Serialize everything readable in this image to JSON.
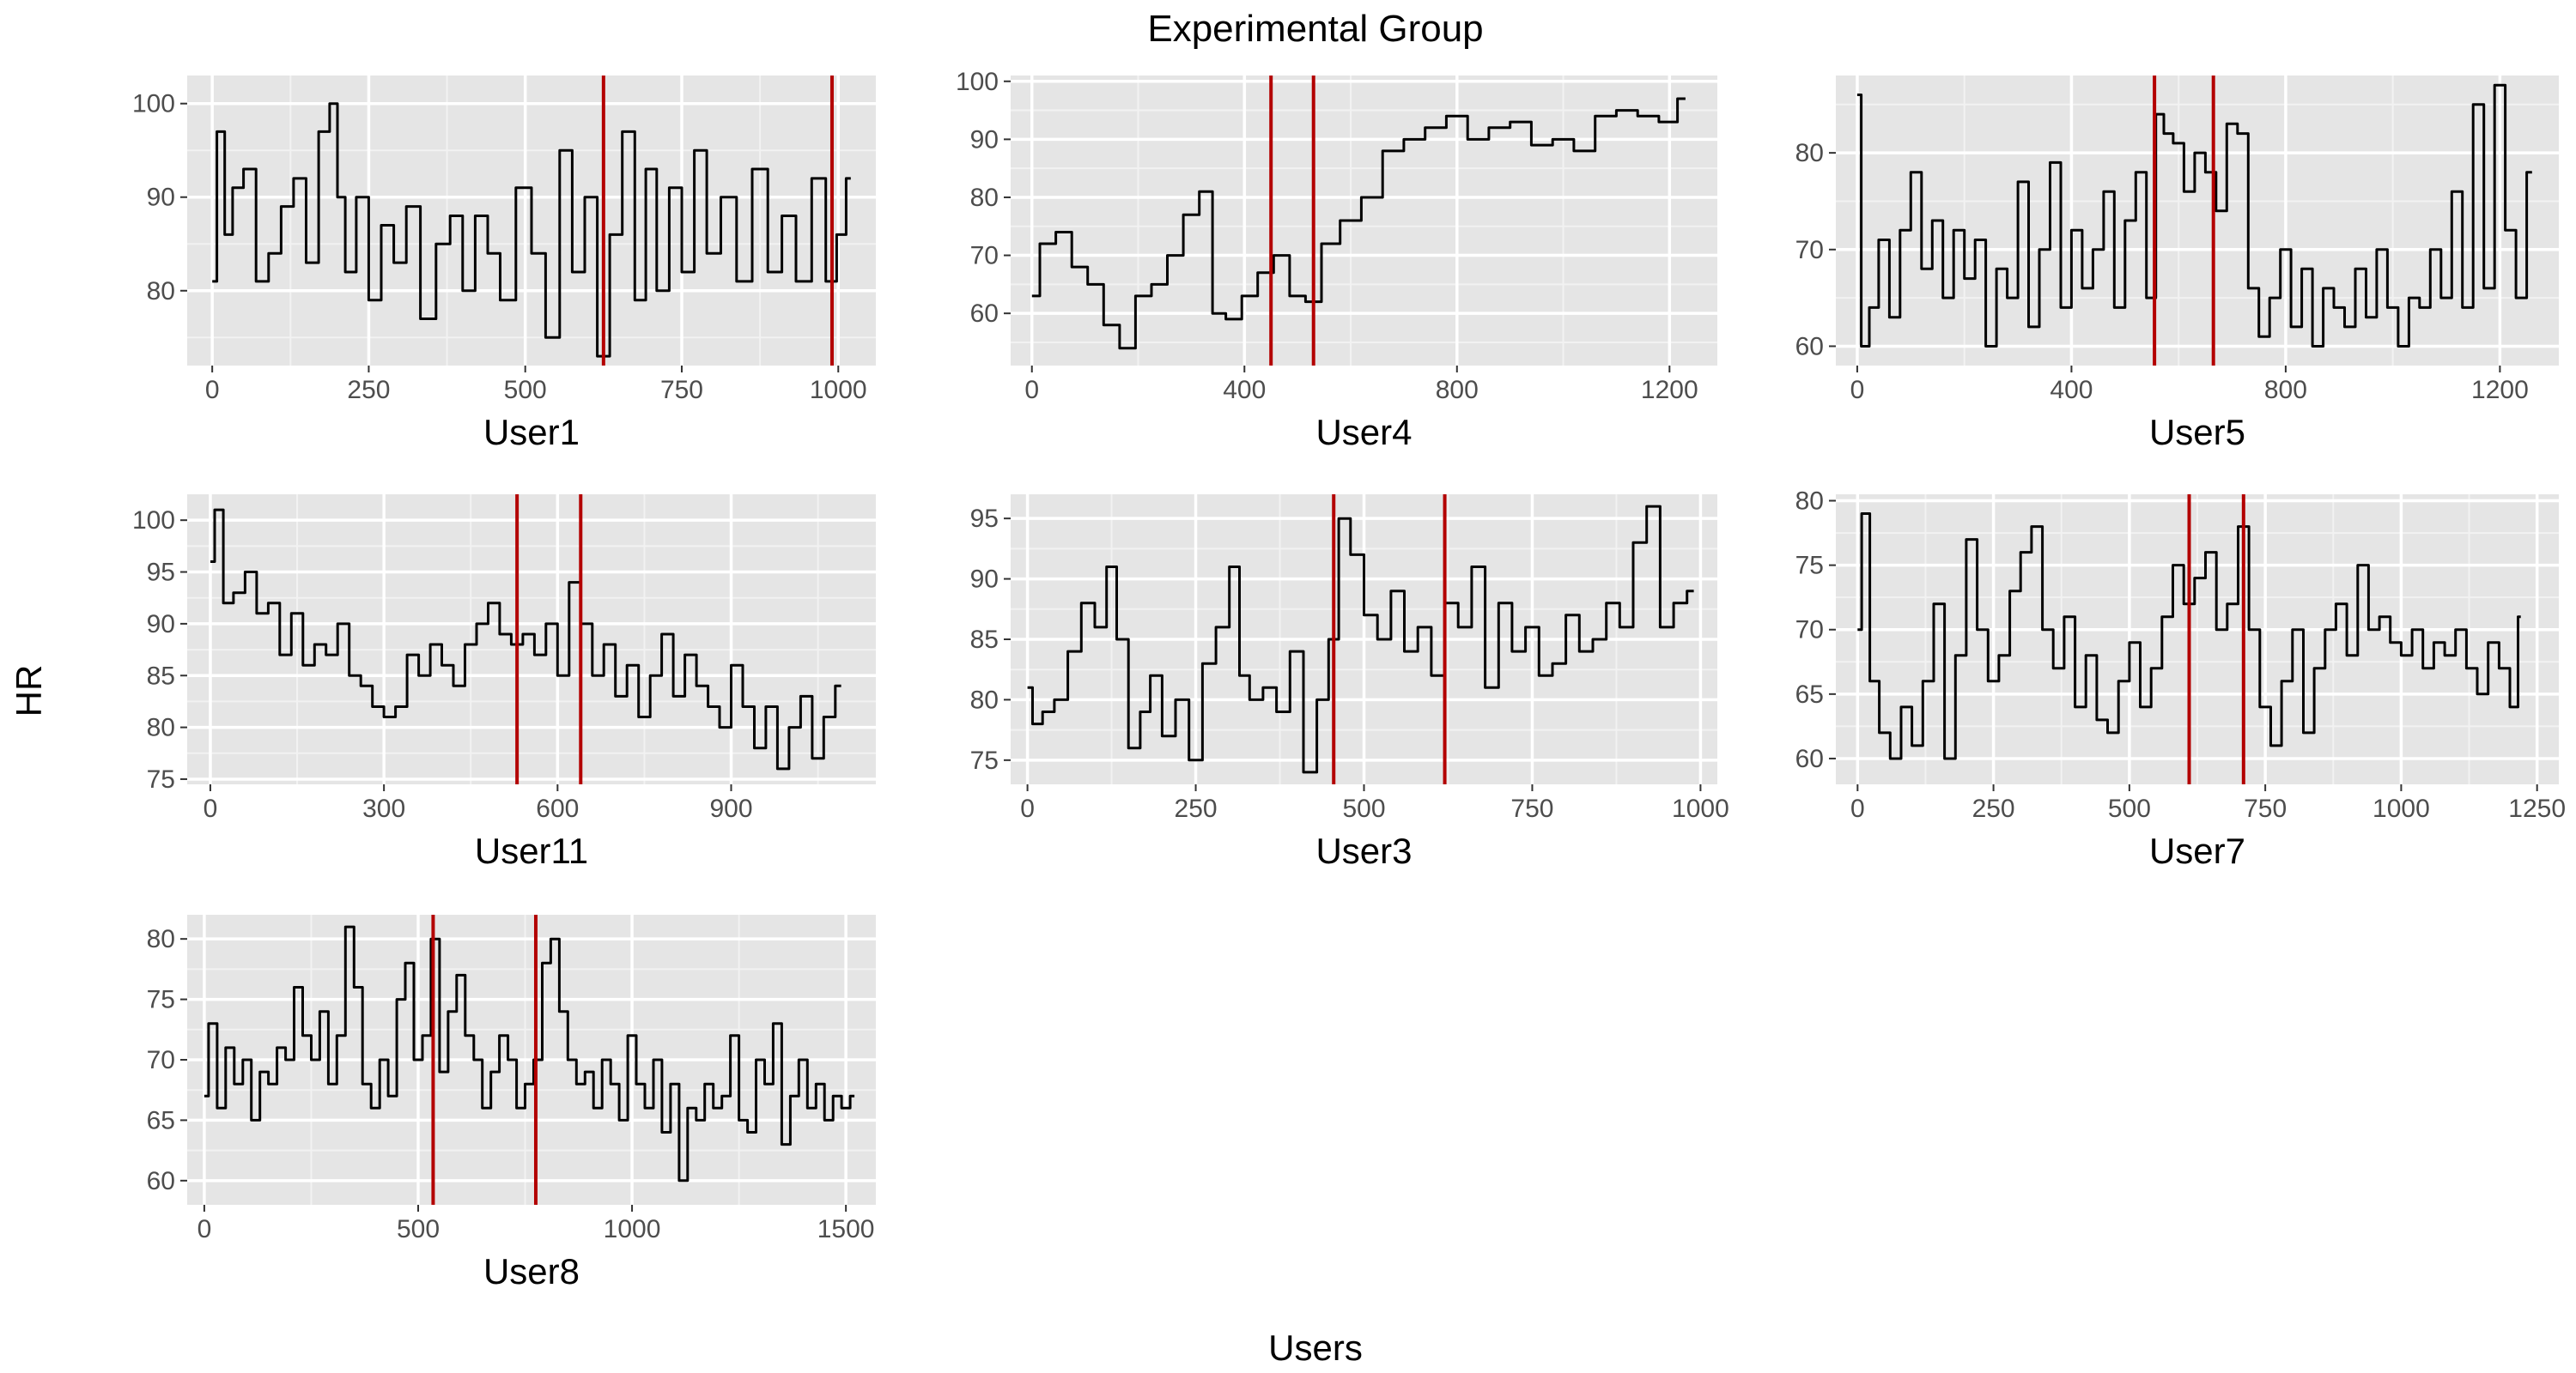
{
  "figure": {
    "title": "Experimental Group",
    "ylabel": "HR",
    "xlabel": "Users"
  },
  "colors": {
    "panel_bg": "#e5e5e5",
    "grid_major": "#ffffff",
    "grid_minor": "#f2f2f2",
    "series": "#000000",
    "marker": "#b30000",
    "tick_text": "#4d4d4d"
  },
  "chart_data": [
    {
      "type": "line",
      "xlabel": "User1",
      "xlim": [
        -40,
        1060
      ],
      "ylim": [
        72,
        103
      ],
      "xticks": [
        0,
        250,
        500,
        750,
        1000
      ],
      "yticks": [
        80,
        90,
        100
      ],
      "markers": [
        625,
        990
      ],
      "x": [
        0,
        15,
        25,
        40,
        60,
        80,
        100,
        120,
        140,
        160,
        180,
        195,
        205,
        220,
        240,
        260,
        280,
        300,
        320,
        345,
        370,
        390,
        410,
        430,
        450,
        470,
        500,
        520,
        545,
        565,
        585,
        605,
        625,
        645,
        665,
        685,
        700,
        720,
        740,
        760,
        780,
        800,
        825,
        850,
        875,
        900,
        920,
        945,
        970,
        990,
        1005,
        1020
      ],
      "y": [
        81,
        97,
        86,
        91,
        93,
        81,
        84,
        89,
        92,
        83,
        97,
        100,
        90,
        82,
        90,
        79,
        87,
        83,
        89,
        77,
        85,
        88,
        80,
        88,
        84,
        79,
        91,
        84,
        75,
        95,
        82,
        90,
        73,
        86,
        97,
        79,
        93,
        80,
        91,
        82,
        95,
        84,
        90,
        81,
        93,
        82,
        88,
        81,
        92,
        81,
        86,
        92
      ]
    },
    {
      "type": "line",
      "xlabel": "User4",
      "xlim": [
        -40,
        1290
      ],
      "ylim": [
        51,
        101
      ],
      "xticks": [
        0,
        400,
        800,
        1200
      ],
      "yticks": [
        60,
        70,
        80,
        90,
        100
      ],
      "markers": [
        450,
        530
      ],
      "x": [
        0,
        30,
        60,
        90,
        120,
        150,
        180,
        210,
        240,
        270,
        300,
        330,
        350,
        380,
        410,
        440,
        470,
        500,
        530,
        560,
        600,
        640,
        680,
        720,
        760,
        800,
        840,
        880,
        920,
        960,
        1000,
        1040,
        1080,
        1120,
        1160,
        1200,
        1230
      ],
      "y": [
        63,
        72,
        74,
        68,
        65,
        58,
        54,
        63,
        65,
        70,
        77,
        81,
        60,
        59,
        63,
        67,
        70,
        63,
        62,
        72,
        76,
        80,
        88,
        90,
        92,
        94,
        90,
        92,
        93,
        89,
        90,
        88,
        94,
        95,
        94,
        93,
        97
      ]
    },
    {
      "type": "line",
      "xlabel": "User5",
      "xlim": [
        -40,
        1310
      ],
      "ylim": [
        58,
        88
      ],
      "xticks": [
        0,
        400,
        800,
        1200
      ],
      "yticks": [
        60,
        70,
        80
      ],
      "markers": [
        555,
        665
      ],
      "x": [
        0,
        15,
        30,
        50,
        70,
        90,
        110,
        130,
        150,
        170,
        190,
        210,
        230,
        250,
        270,
        290,
        310,
        330,
        350,
        370,
        390,
        410,
        430,
        450,
        470,
        490,
        510,
        530,
        550,
        565,
        580,
        600,
        620,
        640,
        660,
        680,
        700,
        720,
        740,
        760,
        780,
        800,
        820,
        840,
        860,
        880,
        900,
        920,
        940,
        960,
        980,
        1000,
        1020,
        1040,
        1060,
        1080,
        1100,
        1120,
        1140,
        1160,
        1180,
        1200,
        1220,
        1240,
        1260
      ],
      "y": [
        86,
        60,
        64,
        71,
        63,
        72,
        78,
        68,
        73,
        65,
        72,
        67,
        71,
        60,
        68,
        65,
        77,
        62,
        70,
        79,
        64,
        72,
        66,
        70,
        76,
        64,
        73,
        78,
        65,
        84,
        82,
        81,
        76,
        80,
        78,
        74,
        83,
        82,
        66,
        61,
        65,
        70,
        62,
        68,
        60,
        66,
        64,
        62,
        68,
        63,
        70,
        64,
        60,
        65,
        64,
        70,
        65,
        76,
        64,
        85,
        66,
        87,
        72,
        65,
        78
      ]
    },
    {
      "type": "line",
      "xlabel": "User11",
      "xlim": [
        -40,
        1150
      ],
      "ylim": [
        74.5,
        102.5
      ],
      "xticks": [
        0,
        300,
        600,
        900
      ],
      "yticks": [
        75,
        80,
        85,
        90,
        95,
        100
      ],
      "markers": [
        530,
        640
      ],
      "x": [
        0,
        15,
        30,
        50,
        70,
        90,
        110,
        130,
        150,
        170,
        190,
        210,
        230,
        250,
        270,
        290,
        310,
        330,
        350,
        370,
        390,
        410,
        430,
        450,
        470,
        490,
        510,
        530,
        550,
        570,
        590,
        610,
        630,
        650,
        670,
        690,
        710,
        730,
        750,
        770,
        790,
        810,
        830,
        850,
        870,
        890,
        910,
        930,
        950,
        970,
        990,
        1010,
        1030,
        1050,
        1070,
        1090
      ],
      "y": [
        96,
        101,
        92,
        93,
        95,
        91,
        92,
        87,
        91,
        86,
        88,
        87,
        90,
        85,
        84,
        82,
        81,
        82,
        87,
        85,
        88,
        86,
        84,
        88,
        90,
        92,
        89,
        88,
        89,
        87,
        90,
        85,
        94,
        90,
        85,
        88,
        83,
        86,
        81,
        85,
        89,
        83,
        87,
        84,
        82,
        80,
        86,
        82,
        78,
        82,
        76,
        80,
        83,
        77,
        81,
        84
      ]
    },
    {
      "type": "line",
      "xlabel": "User3",
      "xlim": [
        -25,
        1025
      ],
      "ylim": [
        73,
        97
      ],
      "xticks": [
        0,
        250,
        500,
        750,
        1000
      ],
      "yticks": [
        75,
        80,
        85,
        90,
        95
      ],
      "markers": [
        455,
        620
      ],
      "x": [
        0,
        15,
        30,
        50,
        70,
        90,
        110,
        125,
        140,
        160,
        175,
        190,
        210,
        230,
        250,
        270,
        290,
        310,
        320,
        340,
        360,
        380,
        400,
        420,
        440,
        455,
        470,
        490,
        510,
        530,
        550,
        570,
        590,
        610,
        630,
        650,
        670,
        690,
        710,
        730,
        750,
        770,
        790,
        810,
        830,
        850,
        870,
        890,
        910,
        930,
        950,
        970,
        990
      ],
      "y": [
        81,
        78,
        79,
        80,
        84,
        88,
        86,
        91,
        85,
        76,
        79,
        82,
        77,
        80,
        75,
        83,
        86,
        91,
        82,
        80,
        81,
        79,
        84,
        74,
        80,
        85,
        95,
        92,
        87,
        85,
        89,
        84,
        86,
        82,
        88,
        86,
        91,
        81,
        88,
        84,
        86,
        82,
        83,
        87,
        84,
        85,
        88,
        86,
        93,
        96,
        86,
        88,
        89
      ]
    },
    {
      "type": "line",
      "xlabel": "User7",
      "xlim": [
        -40,
        1290
      ],
      "ylim": [
        58,
        80.5
      ],
      "xticks": [
        0,
        250,
        500,
        750,
        1000,
        1250
      ],
      "yticks": [
        60,
        65,
        70,
        75,
        80
      ],
      "markers": [
        610,
        710
      ],
      "x": [
        0,
        15,
        30,
        50,
        70,
        90,
        110,
        130,
        150,
        170,
        190,
        210,
        230,
        250,
        270,
        290,
        310,
        330,
        350,
        370,
        390,
        410,
        430,
        450,
        470,
        490,
        510,
        530,
        550,
        570,
        590,
        610,
        630,
        650,
        670,
        690,
        710,
        730,
        750,
        770,
        790,
        810,
        830,
        850,
        870,
        890,
        910,
        930,
        950,
        970,
        990,
        1010,
        1030,
        1050,
        1070,
        1090,
        1110,
        1130,
        1150,
        1170,
        1190,
        1210,
        1220
      ],
      "y": [
        70,
        79,
        66,
        62,
        60,
        64,
        61,
        66,
        72,
        60,
        68,
        77,
        70,
        66,
        68,
        73,
        76,
        78,
        70,
        67,
        71,
        64,
        68,
        63,
        62,
        66,
        69,
        64,
        67,
        71,
        75,
        72,
        74,
        76,
        70,
        72,
        78,
        70,
        64,
        61,
        66,
        70,
        62,
        67,
        70,
        72,
        68,
        75,
        70,
        71,
        69,
        68,
        70,
        67,
        69,
        68,
        70,
        67,
        65,
        69,
        67,
        64,
        71
      ]
    },
    {
      "type": "line",
      "xlabel": "User8",
      "xlim": [
        -40,
        1570
      ],
      "ylim": [
        58,
        82
      ],
      "xticks": [
        0,
        500,
        1000,
        1500
      ],
      "yticks": [
        60,
        65,
        70,
        75,
        80
      ],
      "markers": [
        535,
        775
      ],
      "x": [
        0,
        20,
        40,
        60,
        80,
        100,
        120,
        140,
        160,
        180,
        200,
        220,
        240,
        260,
        280,
        300,
        320,
        340,
        360,
        380,
        400,
        420,
        440,
        460,
        480,
        500,
        520,
        540,
        560,
        580,
        600,
        620,
        640,
        660,
        680,
        700,
        720,
        740,
        760,
        780,
        800,
        820,
        840,
        860,
        880,
        900,
        920,
        940,
        960,
        980,
        1000,
        1020,
        1040,
        1060,
        1080,
        1100,
        1120,
        1140,
        1160,
        1180,
        1200,
        1220,
        1240,
        1260,
        1280,
        1300,
        1320,
        1340,
        1360,
        1380,
        1400,
        1420,
        1440,
        1460,
        1480,
        1500,
        1520
      ],
      "y": [
        67,
        73,
        66,
        71,
        68,
        70,
        65,
        69,
        68,
        71,
        70,
        76,
        72,
        70,
        74,
        68,
        72,
        81,
        76,
        68,
        66,
        70,
        67,
        75,
        78,
        70,
        72,
        80,
        69,
        74,
        77,
        72,
        70,
        66,
        69,
        72,
        70,
        66,
        68,
        70,
        78,
        80,
        74,
        70,
        68,
        69,
        66,
        70,
        68,
        65,
        72,
        68,
        66,
        70,
        64,
        68,
        60,
        66,
        65,
        68,
        66,
        67,
        72,
        65,
        64,
        70,
        68,
        73,
        63,
        67,
        70,
        66,
        68,
        65,
        67,
        66,
        67
      ]
    }
  ]
}
